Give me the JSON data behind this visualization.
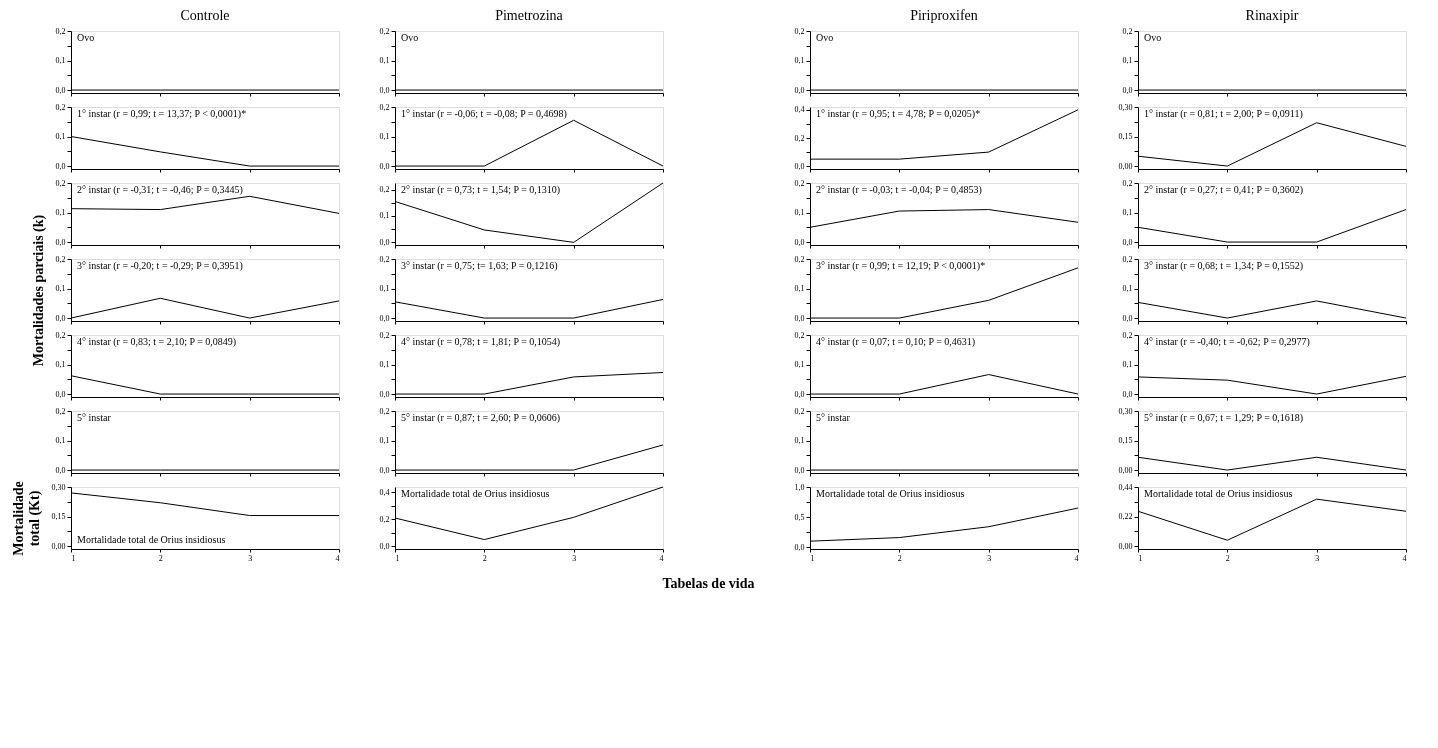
{
  "chart_data": [
    {
      "type": "line",
      "title": "Controle",
      "x": [
        1,
        2,
        3,
        4
      ],
      "values": [
        0,
        0,
        0,
        0
      ],
      "annotations": [
        "Ovo"
      ],
      "xlim": [
        1,
        4
      ],
      "xticks": [
        {
          "value": 1,
          "label": null
        },
        {
          "value": 2,
          "label": null
        },
        {
          "value": 3,
          "label": null
        },
        {
          "value": 4,
          "label": null
        }
      ],
      "ylim": [
        -0.01,
        0.2
      ],
      "yticks": [
        {
          "value": 0,
          "label": "0,0"
        },
        {
          "value": 0.05,
          "label": null
        },
        {
          "value": 0.1,
          "label": "0,1"
        },
        {
          "value": 0.15,
          "label": null
        },
        {
          "value": 0.2,
          "label": "0,2"
        }
      ],
      "tick_labels": "y"
    },
    {
      "type": "line",
      "title": "Pimetrozina",
      "x": [
        1,
        2,
        3,
        4
      ],
      "values": [
        0,
        0,
        0,
        0
      ],
      "annotations": [
        "Ovo"
      ],
      "xlim": [
        1,
        4
      ],
      "xticks": [
        {
          "value": 1,
          "label": null
        },
        {
          "value": 2,
          "label": null
        },
        {
          "value": 3,
          "label": null
        },
        {
          "value": 4,
          "label": null
        }
      ],
      "ylim": [
        -0.01,
        0.2
      ],
      "yticks": [
        {
          "value": 0,
          "label": "0,0"
        },
        {
          "value": 0.05,
          "label": null
        },
        {
          "value": 0.1,
          "label": "0,1"
        },
        {
          "value": 0.15,
          "label": null
        },
        {
          "value": 0.2,
          "label": "0,2"
        }
      ],
      "tick_labels": "y"
    },
    {
      "type": "line",
      "title": "Piriproxifen",
      "x": [
        1,
        2,
        3,
        4
      ],
      "values": [
        0,
        0,
        0,
        0
      ],
      "annotations": [
        "Ovo"
      ],
      "xlim": [
        1,
        4
      ],
      "xticks": [
        {
          "value": 1,
          "label": null
        },
        {
          "value": 2,
          "label": null
        },
        {
          "value": 3,
          "label": null
        },
        {
          "value": 4,
          "label": null
        }
      ],
      "ylim": [
        -0.01,
        0.2
      ],
      "yticks": [
        {
          "value": 0,
          "label": "0,0"
        },
        {
          "value": 0.05,
          "label": null
        },
        {
          "value": 0.1,
          "label": "0,1"
        },
        {
          "value": 0.15,
          "label": null
        },
        {
          "value": 0.2,
          "label": "0,2"
        }
      ],
      "tick_labels": "y"
    },
    {
      "type": "line",
      "title": "Rinaxipir",
      "x": [
        1,
        2,
        3,
        4
      ],
      "values": [
        0,
        0,
        0,
        0
      ],
      "annotations": [
        "Ovo"
      ],
      "xlim": [
        1,
        4
      ],
      "xticks": [
        {
          "value": 1,
          "label": null
        },
        {
          "value": 2,
          "label": null
        },
        {
          "value": 3,
          "label": null
        },
        {
          "value": 4,
          "label": null
        }
      ],
      "ylim": [
        -0.01,
        0.2
      ],
      "yticks": [
        {
          "value": 0,
          "label": "0,0"
        },
        {
          "value": 0.05,
          "label": null
        },
        {
          "value": 0.1,
          "label": "0,1"
        },
        {
          "value": 0.15,
          "label": null
        },
        {
          "value": 0.2,
          "label": "0,2"
        }
      ],
      "tick_labels": "y"
    },
    {
      "type": "line",
      "x": [
        1,
        2,
        3,
        4
      ],
      "values": [
        0.1,
        0.048,
        0,
        0
      ],
      "annotations": [
        "1° instar (r = 0,99; t = 13,37; P < 0,0001)*"
      ],
      "xlim": [
        1,
        4
      ],
      "xticks": [
        {
          "value": 1,
          "label": null
        },
        {
          "value": 2,
          "label": null
        },
        {
          "value": 3,
          "label": null
        },
        {
          "value": 4,
          "label": null
        }
      ],
      "ylim": [
        -0.01,
        0.2
      ],
      "yticks": [
        {
          "value": 0,
          "label": "0,0"
        },
        {
          "value": 0.05,
          "label": null
        },
        {
          "value": 0.1,
          "label": "0,1"
        },
        {
          "value": 0.15,
          "label": null
        },
        {
          "value": 0.2,
          "label": "0,2"
        }
      ],
      "tick_labels": "y"
    },
    {
      "type": "line",
      "x": [
        1,
        2,
        3,
        4
      ],
      "values": [
        0,
        0,
        0.155,
        0
      ],
      "annotations": [
        "1° instar (r = -0,06; t = -0,08; P = 0,4698)"
      ],
      "xlim": [
        1,
        4
      ],
      "xticks": [
        {
          "value": 1,
          "label": null
        },
        {
          "value": 2,
          "label": null
        },
        {
          "value": 3,
          "label": null
        },
        {
          "value": 4,
          "label": null
        }
      ],
      "ylim": [
        -0.01,
        0.2
      ],
      "yticks": [
        {
          "value": 0,
          "label": "0,0"
        },
        {
          "value": 0.05,
          "label": null
        },
        {
          "value": 0.1,
          "label": "0,1"
        },
        {
          "value": 0.15,
          "label": null
        },
        {
          "value": 0.2,
          "label": "0,2"
        }
      ],
      "tick_labels": "y"
    },
    {
      "type": "line",
      "x": [
        1,
        2,
        3,
        4
      ],
      "values": [
        0.05,
        0.05,
        0.1,
        0.4
      ],
      "annotations": [
        "1° instar (r = 0,95; t = 4,78; P = 0,0205)*"
      ],
      "xlim": [
        1,
        4
      ],
      "xticks": [
        {
          "value": 1,
          "label": null
        },
        {
          "value": 2,
          "label": null
        },
        {
          "value": 3,
          "label": null
        },
        {
          "value": 4,
          "label": null
        }
      ],
      "ylim": [
        -0.02,
        0.42
      ],
      "yticks": [
        {
          "value": 0,
          "label": "0,0"
        },
        {
          "value": 0.1,
          "label": null
        },
        {
          "value": 0.2,
          "label": "0,2"
        },
        {
          "value": 0.3,
          "label": null
        },
        {
          "value": 0.4,
          "label": "0,4"
        }
      ],
      "tick_labels": "y"
    },
    {
      "type": "line",
      "x": [
        1,
        2,
        3,
        4
      ],
      "values": [
        0.05,
        0,
        0.22,
        0.1
      ],
      "annotations": [
        "1° instar (r = 0,81; t = 2,00; P = 0,0911)"
      ],
      "xlim": [
        1,
        4
      ],
      "xticks": [
        {
          "value": 1,
          "label": null
        },
        {
          "value": 2,
          "label": null
        },
        {
          "value": 3,
          "label": null
        },
        {
          "value": 4,
          "label": null
        }
      ],
      "ylim": [
        -0.015,
        0.3
      ],
      "yticks": [
        {
          "value": 0,
          "label": "0,00"
        },
        {
          "value": 0.075,
          "label": null
        },
        {
          "value": 0.15,
          "label": "0,15"
        },
        {
          "value": 0.225,
          "label": null
        },
        {
          "value": 0.3,
          "label": "0,30"
        }
      ],
      "tick_labels": "y"
    },
    {
      "type": "line",
      "x": [
        1,
        2,
        3,
        4
      ],
      "values": [
        0.113,
        0.11,
        0.155,
        0.097
      ],
      "annotations": [
        "2° instar (r = -0,31; t = -0,46; P = 0,3445)"
      ],
      "xlim": [
        1,
        4
      ],
      "xticks": [
        {
          "value": 1,
          "label": null
        },
        {
          "value": 2,
          "label": null
        },
        {
          "value": 3,
          "label": null
        },
        {
          "value": 4,
          "label": null
        }
      ],
      "ylim": [
        -0.01,
        0.2
      ],
      "yticks": [
        {
          "value": 0,
          "label": "0,0"
        },
        {
          "value": 0.05,
          "label": null
        },
        {
          "value": 0.1,
          "label": "0,1"
        },
        {
          "value": 0.15,
          "label": null
        },
        {
          "value": 0.2,
          "label": "0,2"
        }
      ],
      "tick_labels": "y"
    },
    {
      "type": "line",
      "x": [
        1,
        2,
        3,
        4
      ],
      "values": [
        0.155,
        0.047,
        0,
        0.225
      ],
      "annotations": [
        "2° instar (r = 0,73; t = 1,54; P = 0,1310)"
      ],
      "xlim": [
        1,
        4
      ],
      "xticks": [
        {
          "value": 1,
          "label": null
        },
        {
          "value": 2,
          "label": null
        },
        {
          "value": 3,
          "label": null
        },
        {
          "value": 4,
          "label": null
        }
      ],
      "ylim": [
        -0.01,
        0.225
      ],
      "yticks": [
        {
          "value": 0,
          "label": "0,0"
        },
        {
          "value": 0.05,
          "label": null
        },
        {
          "value": 0.1,
          "label": "0,1"
        },
        {
          "value": 0.15,
          "label": null
        },
        {
          "value": 0.2,
          "label": "0,2"
        }
      ],
      "tick_labels": "y"
    },
    {
      "type": "line",
      "x": [
        1,
        2,
        3,
        4
      ],
      "values": [
        0.05,
        0.105,
        0.11,
        0.067
      ],
      "annotations": [
        "2° instar (r = -0,03; t = -0,04; P = 0,4853)"
      ],
      "xlim": [
        1,
        4
      ],
      "xticks": [
        {
          "value": 1,
          "label": null
        },
        {
          "value": 2,
          "label": null
        },
        {
          "value": 3,
          "label": null
        },
        {
          "value": 4,
          "label": null
        }
      ],
      "ylim": [
        -0.01,
        0.2
      ],
      "yticks": [
        {
          "value": 0,
          "label": "0,0"
        },
        {
          "value": 0.05,
          "label": null
        },
        {
          "value": 0.1,
          "label": "0,1"
        },
        {
          "value": 0.15,
          "label": null
        },
        {
          "value": 0.2,
          "label": "0,2"
        }
      ],
      "tick_labels": "y"
    },
    {
      "type": "line",
      "x": [
        1,
        2,
        3,
        4
      ],
      "values": [
        0.05,
        0,
        0,
        0.11
      ],
      "annotations": [
        "2° instar (r = 0,27; t = 0,41; P = 0,3602)"
      ],
      "xlim": [
        1,
        4
      ],
      "xticks": [
        {
          "value": 1,
          "label": null
        },
        {
          "value": 2,
          "label": null
        },
        {
          "value": 3,
          "label": null
        },
        {
          "value": 4,
          "label": null
        }
      ],
      "ylim": [
        -0.01,
        0.2
      ],
      "yticks": [
        {
          "value": 0,
          "label": "0,0"
        },
        {
          "value": 0.05,
          "label": null
        },
        {
          "value": 0.1,
          "label": "0,1"
        },
        {
          "value": 0.15,
          "label": null
        },
        {
          "value": 0.2,
          "label": "0,2"
        }
      ],
      "tick_labels": "y"
    },
    {
      "type": "line",
      "ylabel": "Mortalidades parciais (k)",
      "x": [
        1,
        2,
        3,
        4
      ],
      "values": [
        0,
        0.067,
        0,
        0.058
      ],
      "annotations": [
        "3° instar (r = -0,20; t = -0,29; P = 0,3951)"
      ],
      "xlim": [
        1,
        4
      ],
      "xticks": [
        {
          "value": 1,
          "label": null
        },
        {
          "value": 2,
          "label": null
        },
        {
          "value": 3,
          "label": null
        },
        {
          "value": 4,
          "label": null
        }
      ],
      "ylim": [
        -0.01,
        0.2
      ],
      "yticks": [
        {
          "value": 0,
          "label": "0,0"
        },
        {
          "value": 0.05,
          "label": null
        },
        {
          "value": 0.1,
          "label": "0,1"
        },
        {
          "value": 0.15,
          "label": null
        },
        {
          "value": 0.2,
          "label": "0,2"
        }
      ],
      "tick_labels": "y"
    },
    {
      "type": "line",
      "x": [
        1,
        2,
        3,
        4
      ],
      "values": [
        0.055,
        0,
        0,
        0.063
      ],
      "annotations": [
        "3° instar (r = 0,75; t= 1,63; P = 0,1216)"
      ],
      "xlim": [
        1,
        4
      ],
      "xticks": [
        {
          "value": 1,
          "label": null
        },
        {
          "value": 2,
          "label": null
        },
        {
          "value": 3,
          "label": null
        },
        {
          "value": 4,
          "label": null
        }
      ],
      "ylim": [
        -0.01,
        0.2
      ],
      "yticks": [
        {
          "value": 0,
          "label": "0,0"
        },
        {
          "value": 0.05,
          "label": null
        },
        {
          "value": 0.1,
          "label": "0,1"
        },
        {
          "value": 0.15,
          "label": null
        },
        {
          "value": 0.2,
          "label": "0,2"
        }
      ],
      "tick_labels": "y"
    },
    {
      "type": "line",
      "x": [
        1,
        2,
        3,
        4
      ],
      "values": [
        0,
        0,
        0.06,
        0.17
      ],
      "annotations": [
        "3° instar (r = 0,99; t = 12,19; P < 0,0001)*"
      ],
      "xlim": [
        1,
        4
      ],
      "xticks": [
        {
          "value": 1,
          "label": null
        },
        {
          "value": 2,
          "label": null
        },
        {
          "value": 3,
          "label": null
        },
        {
          "value": 4,
          "label": null
        }
      ],
      "ylim": [
        -0.01,
        0.2
      ],
      "yticks": [
        {
          "value": 0,
          "label": "0,0"
        },
        {
          "value": 0.05,
          "label": null
        },
        {
          "value": 0.1,
          "label": "0,1"
        },
        {
          "value": 0.15,
          "label": null
        },
        {
          "value": 0.2,
          "label": "0,2"
        }
      ],
      "tick_labels": "y"
    },
    {
      "type": "line",
      "x": [
        1,
        2,
        3,
        4
      ],
      "values": [
        0.053,
        0,
        0.058,
        0
      ],
      "annotations": [
        "3° instar (r = 0,68; t = 1,34; P = 0,1552)"
      ],
      "xlim": [
        1,
        4
      ],
      "xticks": [
        {
          "value": 1,
          "label": null
        },
        {
          "value": 2,
          "label": null
        },
        {
          "value": 3,
          "label": null
        },
        {
          "value": 4,
          "label": null
        }
      ],
      "ylim": [
        -0.01,
        0.2
      ],
      "yticks": [
        {
          "value": 0,
          "label": "0,0"
        },
        {
          "value": 0.05,
          "label": null
        },
        {
          "value": 0.1,
          "label": "0,1"
        },
        {
          "value": 0.15,
          "label": null
        },
        {
          "value": 0.2,
          "label": "0,2"
        }
      ],
      "tick_labels": "y"
    },
    {
      "type": "line",
      "x": [
        1,
        2,
        3,
        4
      ],
      "values": [
        0.062,
        0,
        0,
        0
      ],
      "annotations": [
        "4° instar (r = 0,83; t = 2,10; P = 0,0849)"
      ],
      "xlim": [
        1,
        4
      ],
      "xticks": [
        {
          "value": 1,
          "label": null
        },
        {
          "value": 2,
          "label": null
        },
        {
          "value": 3,
          "label": null
        },
        {
          "value": 4,
          "label": null
        }
      ],
      "ylim": [
        -0.01,
        0.2
      ],
      "yticks": [
        {
          "value": 0,
          "label": "0,0"
        },
        {
          "value": 0.05,
          "label": null
        },
        {
          "value": 0.1,
          "label": "0,1"
        },
        {
          "value": 0.15,
          "label": null
        },
        {
          "value": 0.2,
          "label": "0,2"
        }
      ],
      "tick_labels": "y"
    },
    {
      "type": "line",
      "x": [
        1,
        2,
        3,
        4
      ],
      "values": [
        0,
        0,
        0.058,
        0.073
      ],
      "annotations": [
        "4° instar (r = 0,78; t = 1,81; P = 0,1054)"
      ],
      "xlim": [
        1,
        4
      ],
      "xticks": [
        {
          "value": 1,
          "label": null
        },
        {
          "value": 2,
          "label": null
        },
        {
          "value": 3,
          "label": null
        },
        {
          "value": 4,
          "label": null
        }
      ],
      "ylim": [
        -0.01,
        0.2
      ],
      "yticks": [
        {
          "value": 0,
          "label": "0,0"
        },
        {
          "value": 0.05,
          "label": null
        },
        {
          "value": 0.1,
          "label": "0,1"
        },
        {
          "value": 0.15,
          "label": null
        },
        {
          "value": 0.2,
          "label": "0,2"
        }
      ],
      "tick_labels": "y"
    },
    {
      "type": "line",
      "x": [
        1,
        2,
        3,
        4
      ],
      "values": [
        0,
        0,
        0.066,
        0
      ],
      "annotations": [
        "4° instar (r = 0,07; t = 0,10; P = 0,4631)"
      ],
      "xlim": [
        1,
        4
      ],
      "xticks": [
        {
          "value": 1,
          "label": null
        },
        {
          "value": 2,
          "label": null
        },
        {
          "value": 3,
          "label": null
        },
        {
          "value": 4,
          "label": null
        }
      ],
      "ylim": [
        -0.01,
        0.2
      ],
      "yticks": [
        {
          "value": 0,
          "label": "0,0"
        },
        {
          "value": 0.05,
          "label": null
        },
        {
          "value": 0.1,
          "label": "0,1"
        },
        {
          "value": 0.15,
          "label": null
        },
        {
          "value": 0.2,
          "label": "0,2"
        }
      ],
      "tick_labels": "y"
    },
    {
      "type": "line",
      "x": [
        1,
        2,
        3,
        4
      ],
      "values": [
        0.058,
        0.047,
        0,
        0.06
      ],
      "annotations": [
        "4° instar (r = -0,40; t = -0,62; P = 0,2977)"
      ],
      "xlim": [
        1,
        4
      ],
      "xticks": [
        {
          "value": 1,
          "label": null
        },
        {
          "value": 2,
          "label": null
        },
        {
          "value": 3,
          "label": null
        },
        {
          "value": 4,
          "label": null
        }
      ],
      "ylim": [
        -0.01,
        0.2
      ],
      "yticks": [
        {
          "value": 0,
          "label": "0,0"
        },
        {
          "value": 0.05,
          "label": null
        },
        {
          "value": 0.1,
          "label": "0,1"
        },
        {
          "value": 0.15,
          "label": null
        },
        {
          "value": 0.2,
          "label": "0,2"
        }
      ],
      "tick_labels": "y"
    },
    {
      "type": "line",
      "x": [
        1,
        2,
        3,
        4
      ],
      "values": [
        0,
        0,
        0,
        0
      ],
      "annotations": [
        "5° instar"
      ],
      "xlim": [
        1,
        4
      ],
      "xticks": [
        {
          "value": 1,
          "label": null
        },
        {
          "value": 2,
          "label": null
        },
        {
          "value": 3,
          "label": null
        },
        {
          "value": 4,
          "label": null
        }
      ],
      "ylim": [
        -0.01,
        0.2
      ],
      "yticks": [
        {
          "value": 0,
          "label": "0,0"
        },
        {
          "value": 0.05,
          "label": null
        },
        {
          "value": 0.1,
          "label": "0,1"
        },
        {
          "value": 0.15,
          "label": null
        },
        {
          "value": 0.2,
          "label": "0,2"
        }
      ],
      "tick_labels": "y"
    },
    {
      "type": "line",
      "x": [
        1,
        2,
        3,
        4
      ],
      "values": [
        0,
        0,
        0,
        0.085
      ],
      "annotations": [
        "5° instar (r = 0,87; t = 2,60; P = 0,0606)"
      ],
      "xlim": [
        1,
        4
      ],
      "xticks": [
        {
          "value": 1,
          "label": null
        },
        {
          "value": 2,
          "label": null
        },
        {
          "value": 3,
          "label": null
        },
        {
          "value": 4,
          "label": null
        }
      ],
      "ylim": [
        -0.01,
        0.2
      ],
      "yticks": [
        {
          "value": 0,
          "label": "0,0"
        },
        {
          "value": 0.05,
          "label": null
        },
        {
          "value": 0.1,
          "label": "0,1"
        },
        {
          "value": 0.15,
          "label": null
        },
        {
          "value": 0.2,
          "label": "0,2"
        }
      ],
      "tick_labels": "y"
    },
    {
      "type": "line",
      "x": [
        1,
        2,
        3,
        4
      ],
      "values": [
        0,
        0,
        0,
        0
      ],
      "annotations": [
        "5° instar"
      ],
      "xlim": [
        1,
        4
      ],
      "xticks": [
        {
          "value": 1,
          "label": null
        },
        {
          "value": 2,
          "label": null
        },
        {
          "value": 3,
          "label": null
        },
        {
          "value": 4,
          "label": null
        }
      ],
      "ylim": [
        -0.01,
        0.2
      ],
      "yticks": [
        {
          "value": 0,
          "label": "0,0"
        },
        {
          "value": 0.05,
          "label": null
        },
        {
          "value": 0.1,
          "label": "0,1"
        },
        {
          "value": 0.15,
          "label": null
        },
        {
          "value": 0.2,
          "label": "0,2"
        }
      ],
      "tick_labels": "y"
    },
    {
      "type": "line",
      "x": [
        1,
        2,
        3,
        4
      ],
      "values": [
        0.065,
        0,
        0.065,
        0
      ],
      "annotations": [
        "5° instar (r = 0,67; t = 1,29; P = 0,1618)"
      ],
      "xlim": [
        1,
        4
      ],
      "xticks": [
        {
          "value": 1,
          "label": null
        },
        {
          "value": 2,
          "label": null
        },
        {
          "value": 3,
          "label": null
        },
        {
          "value": 4,
          "label": null
        }
      ],
      "ylim": [
        -0.015,
        0.3
      ],
      "yticks": [
        {
          "value": 0,
          "label": "0,00"
        },
        {
          "value": 0.075,
          "label": null
        },
        {
          "value": 0.15,
          "label": "0,15"
        },
        {
          "value": 0.225,
          "label": null
        },
        {
          "value": 0.3,
          "label": "0,30"
        }
      ],
      "tick_labels": "y"
    },
    {
      "type": "line",
      "ylabel": "Mortalidade total (Kt)",
      "x": [
        1,
        2,
        3,
        4
      ],
      "values": [
        0.27,
        0.22,
        0.155,
        0.155
      ],
      "annotations": [
        "Mortalidade total de Orius insidiosus"
      ],
      "xlim": [
        1,
        4
      ],
      "xticks": [
        1,
        2,
        3,
        4
      ],
      "ylim": [
        -0.015,
        0.3
      ],
      "yticks": [
        {
          "value": 0,
          "label": "0,00"
        },
        {
          "value": 0.075,
          "label": null
        },
        {
          "value": 0.15,
          "label": "0,15"
        },
        {
          "value": 0.225,
          "label": null
        },
        {
          "value": 0.3,
          "label": "0,30"
        }
      ]
    },
    {
      "type": "line",
      "xlabel": "Tabelas de vida",
      "x": [
        1,
        2,
        3,
        4
      ],
      "values": [
        0.21,
        0.05,
        0.215,
        0.44
      ],
      "annotations": [
        "Mortalidade total de Orius insidiosus"
      ],
      "xlim": [
        1,
        4
      ],
      "xticks": [
        1,
        2,
        3,
        4
      ],
      "ylim": [
        -0.02,
        0.44
      ],
      "yticks": [
        {
          "value": 0,
          "label": "0,0"
        },
        {
          "value": 0.1,
          "label": null
        },
        {
          "value": 0.2,
          "label": "0,2"
        },
        {
          "value": 0.3,
          "label": null
        },
        {
          "value": 0.4,
          "label": "0,4"
        }
      ]
    },
    {
      "type": "line",
      "x": [
        1,
        2,
        3,
        4
      ],
      "values": [
        0.1,
        0.16,
        0.34,
        0.65
      ],
      "annotations": [
        "Mortalidade total de Orius insidiosus"
      ],
      "xlim": [
        1,
        4
      ],
      "xticks": [
        1,
        2,
        3,
        4
      ],
      "ylim": [
        -0.03,
        1.0
      ],
      "yticks": [
        {
          "value": 0,
          "label": "0,0"
        },
        {
          "value": 0.25,
          "label": null
        },
        {
          "value": 0.5,
          "label": "0,5"
        },
        {
          "value": 0.75,
          "label": null
        },
        {
          "value": 1.0,
          "label": "1,0"
        }
      ]
    },
    {
      "type": "line",
      "x": [
        1,
        2,
        3,
        4
      ],
      "values": [
        0.26,
        0.045,
        0.35,
        0.26
      ],
      "annotations": [
        "Mortalidade total de Orius insidiosus"
      ],
      "xlim": [
        1,
        4
      ],
      "xticks": [
        1,
        2,
        3,
        4
      ],
      "ylim": [
        -0.02,
        0.44
      ],
      "yticks": [
        {
          "value": 0,
          "label": "0,00"
        },
        {
          "value": 0.11,
          "label": null
        },
        {
          "value": 0.22,
          "label": "0,22"
        },
        {
          "value": 0.33,
          "label": null
        },
        {
          "value": 0.44,
          "label": "0,44"
        }
      ]
    }
  ]
}
